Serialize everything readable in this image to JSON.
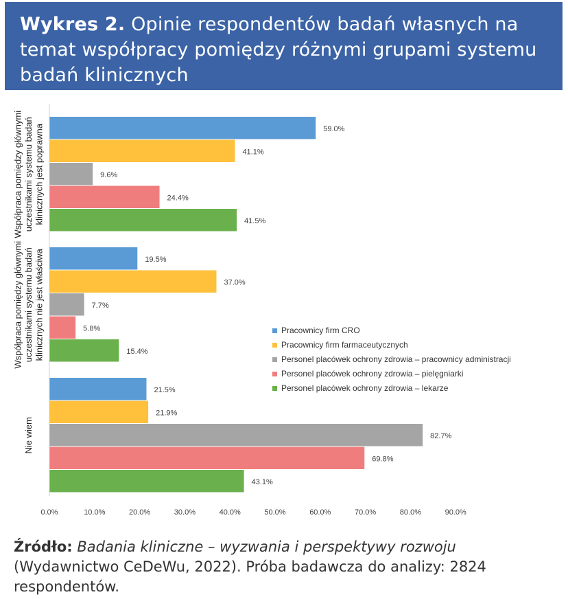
{
  "header": {
    "prefix": "Wykres 2.",
    "title": "Opinie respondentów badań własnych na temat współpracy pomiędzy różnymi grupami systemu badań klinicznych"
  },
  "source": {
    "label": "Źródło:",
    "title": "Badania kliniczne – wyzwania i perspektywy rozwoju",
    "rest": "(Wydawnictwo CeDeWu, 2022). Próba badawcza do analizy: 2824 respondentów."
  },
  "chart_data": {
    "type": "bar",
    "orientation": "horizontal",
    "categories": [
      "Współpraca pomiędzy głównymi uczestnikami systemu badań klinicznych jest poprawna",
      "Współpraca pomiędzy głównymi uczestnikami systemu badań klinicznych nie jest właściwa",
      "Nie wiem"
    ],
    "category_lines": [
      [
        "Współpraca pomiędzy głównymi",
        "uczestnikami systemu badań",
        "klinicznych jest poprawna"
      ],
      [
        "Współpraca pomiędzy głównymi",
        "uczestnikami systemu badań",
        "klinicznych nie jest właściwa"
      ],
      [
        "Nie wiem"
      ]
    ],
    "series": [
      {
        "name": "Pracownicy firm CRO",
        "color": "#5b9bd5",
        "values": [
          59.0,
          19.5,
          21.5
        ]
      },
      {
        "name": "Pracownicy firm farmaceutycznych",
        "color": "#ffc03c",
        "values": [
          41.1,
          37.0,
          21.9
        ]
      },
      {
        "name": "Personel placówek ochrony zdrowia – pracownicy administracji",
        "color": "#a5a5a5",
        "values": [
          9.6,
          7.7,
          82.7
        ]
      },
      {
        "name": "Personel placówek ochrony zdrowia – pielęgniarki",
        "color": "#f07d7d",
        "values": [
          24.4,
          5.8,
          69.8
        ]
      },
      {
        "name": "Personel placówek ochrony zdrowia – lekarze",
        "color": "#6ab04c",
        "values": [
          41.5,
          15.4,
          43.1
        ]
      }
    ],
    "value_labels": [
      [
        "59.0%",
        "19.5%",
        "21.5%"
      ],
      [
        "41.1%",
        "37.0%",
        "21.9%"
      ],
      [
        "9.6%",
        "7.7%",
        "82.7%"
      ],
      [
        "24.4%",
        "5.8%",
        "69.8%"
      ],
      [
        "41.5%",
        "15.4%",
        "43.1%"
      ]
    ],
    "xlim": [
      0,
      90
    ],
    "xticks": [
      "0.0%",
      "10.0%",
      "20.0%",
      "30.0%",
      "40.0%",
      "50.0%",
      "60.0%",
      "70.0%",
      "80.0%",
      "90.0%"
    ],
    "legend_position": "right-middle",
    "grid": false
  }
}
